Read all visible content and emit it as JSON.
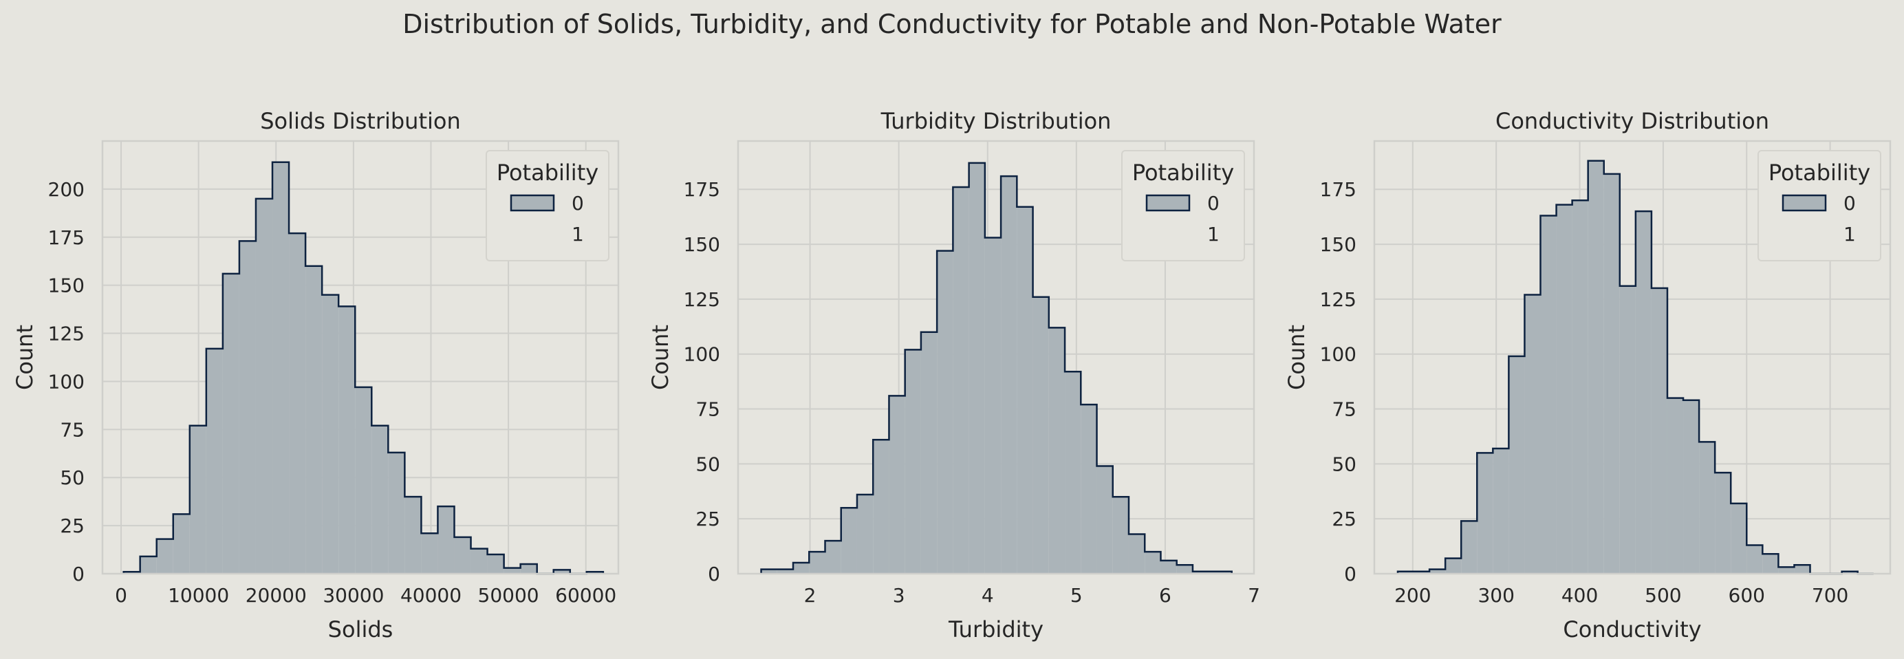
{
  "figure": {
    "title": "Distribution of Solids, Turbidity, and Conductivity for Potable and Non-Potable Water"
  },
  "colors": {
    "background": "#e6e5df",
    "plot_background": "#e6e5df",
    "grid": "#cfcfcb",
    "spine": "#cfcfcb",
    "fill_0": "#abb4b9",
    "edge_0": "#0d2240",
    "text": "#262626",
    "legend_bg": "#e6e5df",
    "legend_edge": "#d4d3cd"
  },
  "chart_data": [
    {
      "type": "histogram",
      "title": "Solids Distribution",
      "xlabel": "Solids",
      "ylabel": "Count",
      "xlim": [
        -2400,
        64200
      ],
      "ylim": [
        0,
        225
      ],
      "xticks": [
        0,
        10000,
        20000,
        30000,
        40000,
        50000,
        60000
      ],
      "xticklabels": [
        "0",
        "10000",
        "20000",
        "30000",
        "40000",
        "50000",
        "60000"
      ],
      "yticks": [
        0,
        25,
        50,
        75,
        100,
        125,
        150,
        175,
        200
      ],
      "yticklabels": [
        "0",
        "25",
        "50",
        "75",
        "100",
        "125",
        "150",
        "175",
        "200"
      ],
      "grid": true,
      "legend": {
        "title": "Potability",
        "labels": [
          "0",
          "1"
        ],
        "position": "upper right"
      },
      "series": [
        {
          "name": "0",
          "bin_edges": [
            320,
            2455,
            4590,
            6725,
            8860,
            10995,
            13130,
            15265,
            17400,
            19535,
            21670,
            23805,
            25940,
            28075,
            30210,
            32345,
            34480,
            36615,
            38750,
            40885,
            43020,
            45155,
            47290,
            49425,
            51560,
            53695,
            55830,
            57965,
            60100,
            62235
          ],
          "counts": [
            1,
            9,
            18,
            31,
            77,
            117,
            156,
            173,
            195,
            214,
            177,
            160,
            145,
            139,
            97,
            77,
            63,
            40,
            21,
            35,
            19,
            13,
            10,
            3,
            5,
            0,
            2,
            0,
            1
          ]
        },
        {
          "name": "1",
          "bin_edges": [],
          "counts": []
        }
      ]
    },
    {
      "type": "histogram",
      "title": "Turbidity Distribution",
      "xlabel": "Turbidity",
      "ylabel": "Count",
      "xlim": [
        1.19,
        7.0
      ],
      "ylim": [
        0,
        197
      ],
      "xticks": [
        2,
        3,
        4,
        5,
        6,
        7
      ],
      "xticklabels": [
        "2",
        "3",
        "4",
        "5",
        "6",
        "7"
      ],
      "yticks": [
        0,
        25,
        50,
        75,
        100,
        125,
        150,
        175
      ],
      "yticklabels": [
        "0",
        "25",
        "50",
        "75",
        "100",
        "125",
        "150",
        "175"
      ],
      "grid": true,
      "legend": {
        "title": "Potability",
        "labels": [
          "0",
          "1"
        ],
        "position": "upper right"
      },
      "series": [
        {
          "name": "0",
          "bin_edges": [
            1.45,
            1.63,
            1.81,
            1.99,
            2.17,
            2.35,
            2.53,
            2.71,
            2.89,
            3.07,
            3.25,
            3.43,
            3.61,
            3.79,
            3.97,
            4.15,
            4.33,
            4.51,
            4.69,
            4.87,
            5.05,
            5.23,
            5.41,
            5.59,
            5.77,
            5.95,
            6.13,
            6.31,
            6.49,
            6.67,
            6.75
          ],
          "counts": [
            2,
            2,
            5,
            10,
            15,
            30,
            36,
            61,
            81,
            102,
            110,
            147,
            176,
            187,
            153,
            181,
            167,
            126,
            112,
            92,
            77,
            49,
            35,
            18,
            10,
            6,
            4,
            1,
            1,
            1
          ]
        },
        {
          "name": "1",
          "bin_edges": [],
          "counts": []
        }
      ]
    },
    {
      "type": "histogram",
      "title": "Conductivity Distribution",
      "xlabel": "Conductivity",
      "ylabel": "Count",
      "xlim": [
        154,
        772
      ],
      "ylim": [
        0,
        197
      ],
      "xticks": [
        200,
        300,
        400,
        500,
        600,
        700
      ],
      "xticklabels": [
        "200",
        "300",
        "400",
        "500",
        "600",
        "700"
      ],
      "yticks": [
        0,
        25,
        50,
        75,
        100,
        125,
        150,
        175
      ],
      "yticklabels": [
        "0",
        "25",
        "50",
        "75",
        "100",
        "125",
        "150",
        "175"
      ],
      "grid": true,
      "legend": {
        "title": "Potability",
        "labels": [
          "0",
          "1"
        ],
        "position": "upper right"
      },
      "series": [
        {
          "name": "0",
          "bin_edges": [
            182,
            201,
            220,
            239,
            258,
            277,
            296,
            315,
            334,
            353,
            372,
            391,
            410,
            429,
            448,
            467,
            486,
            505,
            524,
            543,
            562,
            581,
            600,
            619,
            638,
            657,
            676,
            695,
            714,
            733,
            752
          ],
          "counts": [
            1,
            1,
            2,
            7,
            24,
            55,
            57,
            99,
            127,
            163,
            168,
            170,
            188,
            182,
            131,
            165,
            130,
            80,
            79,
            60,
            46,
            32,
            13,
            9,
            3,
            4,
            0,
            0,
            1,
            0
          ]
        },
        {
          "name": "1",
          "bin_edges": [],
          "counts": []
        }
      ]
    }
  ]
}
